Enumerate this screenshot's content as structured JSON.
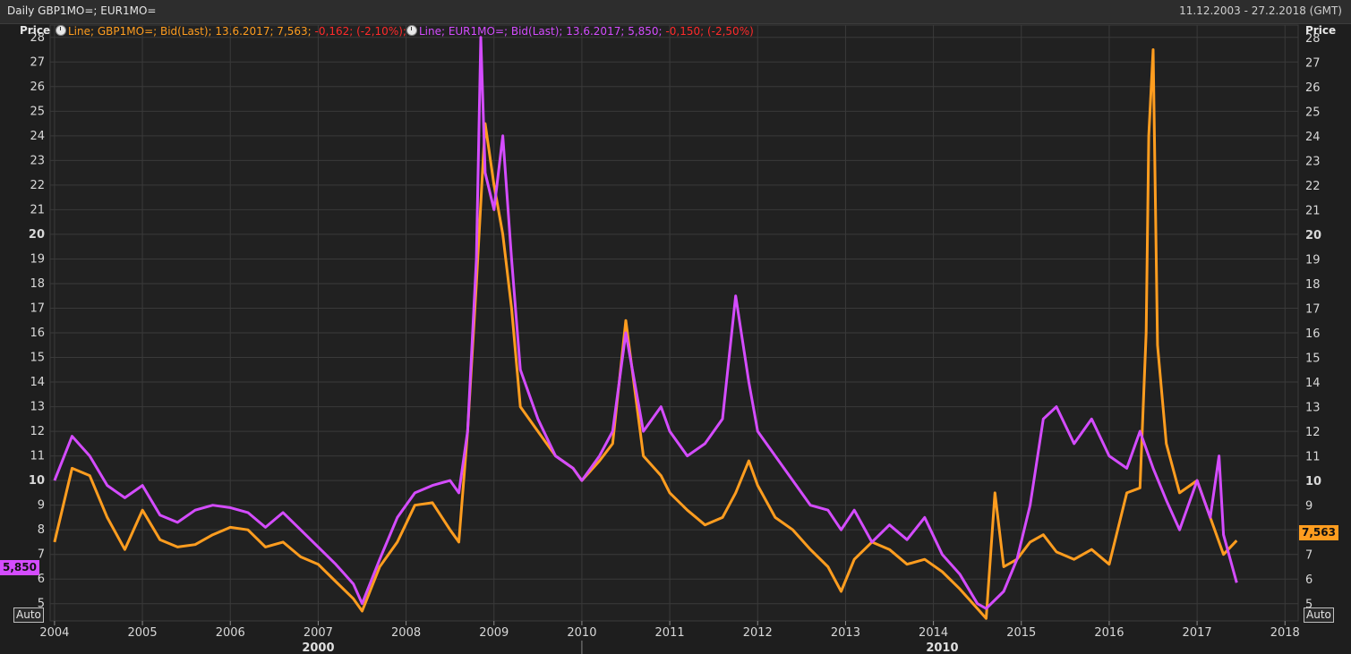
{
  "header": {
    "title": "Daily GBP1MO=; EUR1MO=",
    "date_range": "11.12.2003 - 27.2.2018 (GMT)"
  },
  "axis": {
    "left_title": "Price",
    "right_title": "Price",
    "auto_label": "Auto"
  },
  "legend": {
    "gbp": {
      "prefix": "Line; GBP1MO=; Bid(Last); 13.6.2017; 7,563;",
      "change": "-0,162; (-2,10%);"
    },
    "eur": {
      "prefix": "Line; EUR1MO=; Bid(Last); 13.6.2017; 5,850;",
      "change": "-0,150; (-2,50%)"
    }
  },
  "colors": {
    "gbp": "#ff9d1f",
    "eur": "#d44cff",
    "background": "#1e1e1e",
    "grid": "#3a3a3a",
    "negative": "#ff2a2a"
  },
  "chart_data": {
    "type": "line",
    "ylim": [
      4.3,
      28.5
    ],
    "xlim": [
      2003.95,
      2018.15
    ],
    "y_ticks": [
      5,
      6,
      7,
      8,
      9,
      10,
      11,
      12,
      13,
      14,
      15,
      16,
      17,
      18,
      19,
      20,
      21,
      22,
      23,
      24,
      25,
      26,
      27,
      28
    ],
    "y_bold_ticks": [
      10,
      20
    ],
    "x_ticks": [
      "2004",
      "2005",
      "2006",
      "2007",
      "2008",
      "2009",
      "2010",
      "2011",
      "2012",
      "2013",
      "2014",
      "2015",
      "2016",
      "2017",
      "2018"
    ],
    "x_decade_labels": [
      "2000",
      "2010"
    ],
    "grid": true,
    "series": [
      {
        "name": "GBP1MO=",
        "last_label": "7,563",
        "x": [
          2004.0,
          2004.2,
          2004.4,
          2004.6,
          2004.8,
          2005.0,
          2005.2,
          2005.4,
          2005.6,
          2005.8,
          2006.0,
          2006.2,
          2006.4,
          2006.6,
          2006.8,
          2007.0,
          2007.2,
          2007.4,
          2007.5,
          2007.7,
          2007.9,
          2008.1,
          2008.3,
          2008.5,
          2008.6,
          2008.7,
          2008.8,
          2008.9,
          2009.0,
          2009.1,
          2009.2,
          2009.3,
          2009.5,
          2009.7,
          2009.9,
          2010.0,
          2010.2,
          2010.35,
          2010.5,
          2010.7,
          2010.9,
          2011.0,
          2011.2,
          2011.4,
          2011.6,
          2011.75,
          2011.9,
          2012.0,
          2012.2,
          2012.4,
          2012.6,
          2012.8,
          2012.95,
          2013.1,
          2013.3,
          2013.5,
          2013.7,
          2013.9,
          2014.1,
          2014.3,
          2014.5,
          2014.6,
          2014.7,
          2014.8,
          2014.95,
          2015.1,
          2015.25,
          2015.4,
          2015.6,
          2015.8,
          2016.0,
          2016.2,
          2016.35,
          2016.42,
          2016.45,
          2016.5,
          2016.55,
          2016.65,
          2016.8,
          2017.0,
          2017.15,
          2017.3,
          2017.45
        ],
        "y": [
          7.5,
          10.5,
          10.2,
          8.5,
          7.2,
          8.8,
          7.6,
          7.3,
          7.4,
          7.8,
          8.1,
          8.0,
          7.3,
          7.5,
          6.9,
          6.6,
          5.9,
          5.2,
          4.7,
          6.5,
          7.5,
          9.0,
          9.1,
          8.0,
          7.5,
          12.0,
          18.0,
          24.5,
          22.0,
          20.0,
          17.0,
          13.0,
          12.0,
          11.0,
          10.5,
          10.0,
          10.8,
          11.5,
          16.5,
          11.0,
          10.2,
          9.5,
          8.8,
          8.2,
          8.5,
          9.5,
          10.8,
          9.8,
          8.5,
          8.0,
          7.2,
          6.5,
          5.5,
          6.8,
          7.5,
          7.2,
          6.6,
          6.8,
          6.3,
          5.6,
          4.8,
          4.4,
          9.5,
          6.5,
          6.8,
          7.5,
          7.8,
          7.1,
          6.8,
          7.2,
          6.6,
          9.5,
          9.7,
          16.0,
          24.0,
          27.5,
          15.5,
          11.5,
          9.5,
          10.0,
          8.5,
          7.0,
          7.563
        ]
      },
      {
        "name": "EUR1MO=",
        "last_label": "5,850",
        "x": [
          2004.0,
          2004.2,
          2004.4,
          2004.6,
          2004.8,
          2005.0,
          2005.2,
          2005.4,
          2005.6,
          2005.8,
          2006.0,
          2006.2,
          2006.4,
          2006.6,
          2006.8,
          2007.0,
          2007.2,
          2007.4,
          2007.5,
          2007.7,
          2007.9,
          2008.1,
          2008.3,
          2008.5,
          2008.6,
          2008.7,
          2008.8,
          2008.85,
          2008.9,
          2009.0,
          2009.1,
          2009.2,
          2009.3,
          2009.5,
          2009.7,
          2009.9,
          2010.0,
          2010.2,
          2010.35,
          2010.5,
          2010.7,
          2010.9,
          2011.0,
          2011.2,
          2011.4,
          2011.6,
          2011.75,
          2011.9,
          2012.0,
          2012.2,
          2012.4,
          2012.6,
          2012.8,
          2012.95,
          2013.1,
          2013.3,
          2013.5,
          2013.7,
          2013.9,
          2014.1,
          2014.3,
          2014.5,
          2014.6,
          2014.8,
          2014.95,
          2015.1,
          2015.25,
          2015.4,
          2015.6,
          2015.8,
          2016.0,
          2016.2,
          2016.35,
          2016.5,
          2016.65,
          2016.8,
          2017.0,
          2017.15,
          2017.25,
          2017.3,
          2017.45
        ],
        "y": [
          10.0,
          11.8,
          11.0,
          9.8,
          9.3,
          9.8,
          8.6,
          8.3,
          8.8,
          9.0,
          8.9,
          8.7,
          8.1,
          8.7,
          8.0,
          7.3,
          6.6,
          5.8,
          5.0,
          6.8,
          8.5,
          9.5,
          9.8,
          10.0,
          9.5,
          12.0,
          19.0,
          28.0,
          22.5,
          21.0,
          24.0,
          19.0,
          14.5,
          12.5,
          11.0,
          10.5,
          10.0,
          11.0,
          12.0,
          16.0,
          12.0,
          13.0,
          12.0,
          11.0,
          11.5,
          12.5,
          17.5,
          14.0,
          12.0,
          11.0,
          10.0,
          9.0,
          8.8,
          8.0,
          8.8,
          7.5,
          8.2,
          7.6,
          8.5,
          7.0,
          6.2,
          5.0,
          4.8,
          5.5,
          6.8,
          9.0,
          12.5,
          13.0,
          11.5,
          12.5,
          11.0,
          10.5,
          12.0,
          10.5,
          9.2,
          8.0,
          10.0,
          8.5,
          11.0,
          7.8,
          5.85
        ]
      }
    ]
  }
}
